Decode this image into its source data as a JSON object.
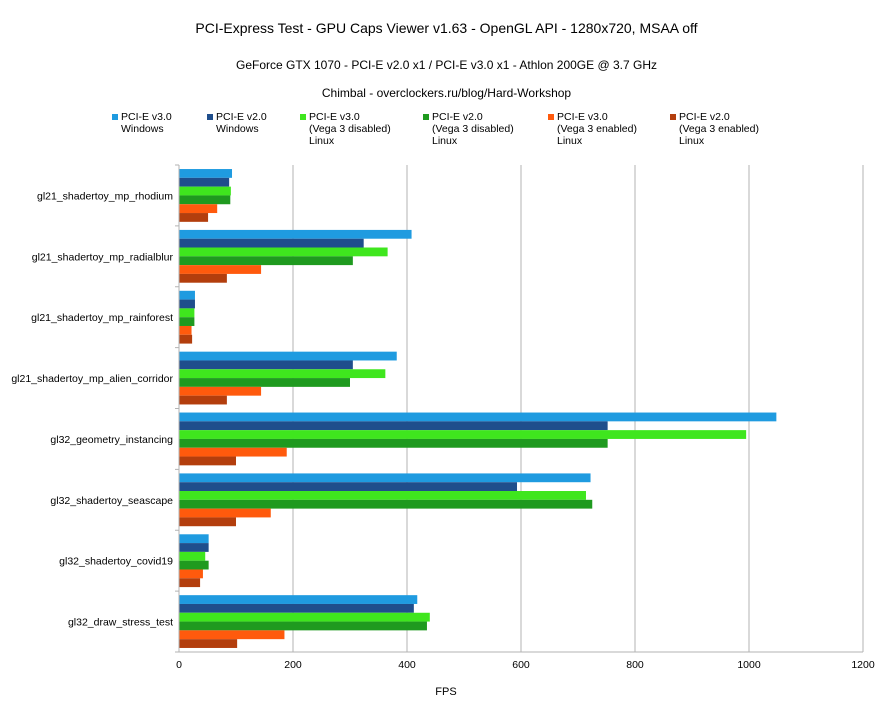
{
  "chart_data": {
    "type": "bar",
    "orientation": "horizontal",
    "title": "PCI-Express Test - GPU Caps Viewer v1.63 - OpenGL API - 1280x720, MSAA off",
    "subtitle": "GeForce GTX 1070 - PCI-E v2.0 x1 / PCI-E v3.0 x1 - Athlon 200GE @ 3.7 GHz",
    "subtitle2": "Chimbal - overclockers.ru/blog/Hard-Workshop",
    "xlabel": "FPS",
    "ylabel": "",
    "xlim": [
      0,
      1200
    ],
    "xticks": [
      0,
      200,
      400,
      600,
      800,
      1000,
      1200
    ],
    "grid": true,
    "legend_position": "top",
    "categories": [
      "gl21_shadertoy_mp_rhodium",
      "gl21_shadertoy_mp_radialblur",
      "gl21_shadertoy_mp_rainforest",
      "gl21_shadertoy_mp_alien_corridor",
      "gl32_geometry_instancing",
      "gl32_shadertoy_seascape",
      "gl32_shadertoy_covid19",
      "gl32_draw_stress_test"
    ],
    "series": [
      {
        "name": "PCI-E v3.0",
        "legend_lines": [
          "PCI-E v3.0",
          "Windows"
        ],
        "color": "#1f9be0",
        "values": [
          93,
          408,
          28,
          382,
          1048,
          722,
          52,
          418
        ]
      },
      {
        "name": "PCI-E v2.0",
        "legend_lines": [
          "PCI-E v2.0",
          "Windows"
        ],
        "color": "#1f4e8c",
        "values": [
          88,
          324,
          28,
          305,
          752,
          593,
          52,
          412
        ]
      },
      {
        "name": "PCI-E v3.0",
        "legend_lines": [
          "PCI-E v3.0",
          "(Vega 3 disabled)",
          "Linux"
        ],
        "color": "#3fe61e",
        "values": [
          91,
          366,
          27,
          362,
          995,
          714,
          46,
          440
        ]
      },
      {
        "name": "PCI-E v2.0",
        "legend_lines": [
          "PCI-E v2.0",
          "(Vega 3 disabled)",
          "Linux"
        ],
        "color": "#1f9a1f",
        "values": [
          90,
          305,
          27,
          300,
          752,
          725,
          52,
          435
        ]
      },
      {
        "name": "PCI-E v3.0",
        "legend_lines": [
          "PCI-E v3.0",
          "(Vega 3 enabled)",
          "Linux"
        ],
        "color": "#ff5a0d",
        "values": [
          67,
          144,
          22,
          144,
          189,
          161,
          42,
          185
        ]
      },
      {
        "name": "PCI-E v2.0",
        "legend_lines": [
          "PCI-E v2.0",
          "(Vega 3 enabled)",
          "Linux"
        ],
        "color": "#b33e0d",
        "values": [
          51,
          84,
          23,
          84,
          100,
          100,
          37,
          102
        ]
      }
    ]
  }
}
